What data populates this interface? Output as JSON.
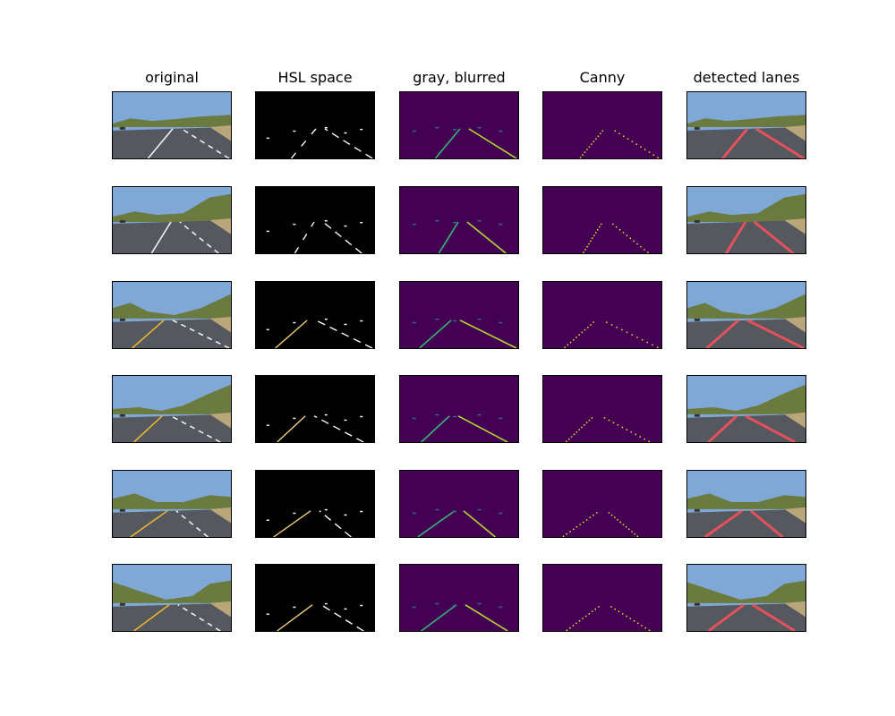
{
  "figure": {
    "columns": [
      {
        "key": "original",
        "title": "original"
      },
      {
        "key": "hsl",
        "title": "HSL space"
      },
      {
        "key": "gray",
        "title": "gray, blurred"
      },
      {
        "key": "canny",
        "title": "Canny"
      },
      {
        "key": "detected",
        "title": "detected lanes"
      }
    ],
    "rows": [
      {
        "left_lane": "white",
        "right_lane": "white"
      },
      {
        "left_lane": "white",
        "right_lane": "white"
      },
      {
        "left_lane": "yellow",
        "right_lane": "white"
      },
      {
        "left_lane": "yellow",
        "right_lane": "white"
      },
      {
        "left_lane": "yellow",
        "right_lane": "white"
      },
      {
        "left_lane": "yellow",
        "right_lane": "white"
      }
    ],
    "colors": {
      "sky": "#7fa8d6",
      "road": "#55585e",
      "vegetation": "#6b7a3e",
      "hsl_background": "#000000",
      "gray_background": "#440154",
      "gray_highlight": "#b5de2b",
      "canny_dots": "#fde725",
      "lane_overlay": "#e8505b",
      "yellow_lane": "#e8b730"
    }
  }
}
